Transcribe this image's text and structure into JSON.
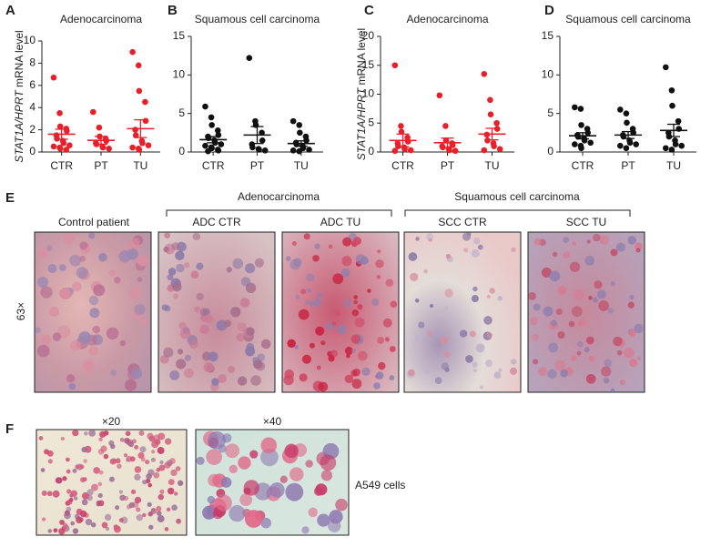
{
  "chart_data": [
    {
      "type": "strip",
      "panel": "A",
      "title": "Adenocarcinoma",
      "ylabel": [
        "STAT1A/HPRT",
        "mRNA level"
      ],
      "color": "#e8202a",
      "categories": [
        "CTR",
        "PT",
        "TU"
      ],
      "ylim": [
        0,
        10
      ],
      "yticks": [
        0,
        2,
        4,
        6,
        8,
        10
      ],
      "groups": [
        {
          "values": [
            6.7,
            3.5,
            2.3,
            2.1,
            1.9,
            1.5,
            1.2,
            1.0,
            0.8,
            0.6,
            0.5,
            0.4,
            0.3,
            0.2
          ],
          "mean": 1.6,
          "error": 0.45
        },
        {
          "values": [
            3.6,
            2.2,
            1.4,
            1.2,
            1.0,
            0.8,
            0.7,
            0.5,
            0.4,
            0.3
          ],
          "mean": 1.05,
          "error": 0.35
        },
        {
          "values": [
            9.0,
            7.8,
            5.5,
            4.5,
            2.8,
            2.0,
            1.5,
            1.0,
            0.8,
            0.6,
            0.4,
            0.3,
            0.2
          ],
          "mean": 2.1,
          "error": 0.8
        }
      ]
    },
    {
      "type": "strip",
      "panel": "B",
      "title": "Squamous cell carcinoma",
      "color": "#111111",
      "categories": [
        "CTR",
        "PT",
        "TU"
      ],
      "ylim": [
        0,
        15
      ],
      "yticks": [
        0,
        5,
        10,
        15
      ],
      "groups": [
        {
          "values": [
            5.9,
            4.5,
            3.5,
            2.8,
            2.2,
            2.0,
            1.8,
            1.5,
            1.2,
            1.0,
            0.8,
            0.6,
            0.5,
            0.3,
            0.2,
            0.1
          ],
          "mean": 1.6,
          "error": 0.4
        },
        {
          "values": [
            12.2,
            4.0,
            3.5,
            2.5,
            1.5,
            1.0,
            0.6,
            0.4,
            0.3,
            0.2
          ],
          "mean": 2.2,
          "error": 1.1
        },
        {
          "values": [
            4.0,
            3.5,
            2.5,
            2.0,
            1.5,
            1.2,
            1.0,
            0.8,
            0.5,
            0.3,
            0.2,
            0.1
          ],
          "mean": 1.1,
          "error": 0.35
        }
      ]
    },
    {
      "type": "strip",
      "panel": "C",
      "title": "Adenocarcinoma",
      "ylabel": [
        "STAT1A/HPRT",
        "mRNA level"
      ],
      "color": "#e8202a",
      "categories": [
        "CTR",
        "PT",
        "TU"
      ],
      "ylim": [
        0,
        20
      ],
      "yticks": [
        0,
        5,
        10,
        15,
        20
      ],
      "groups": [
        {
          "values": [
            15,
            4.5,
            3.5,
            2.5,
            1.8,
            1.5,
            1.0,
            0.8,
            0.5,
            0.3,
            0.2
          ],
          "mean": 2.0,
          "error": 1.1
        },
        {
          "values": [
            9.8,
            4.5,
            2.0,
            1.5,
            1.2,
            1.0,
            0.8,
            0.5,
            0.3,
            0.2
          ],
          "mean": 1.6,
          "error": 0.8
        },
        {
          "values": [
            13.5,
            9.0,
            6.5,
            5.0,
            4.0,
            3.0,
            2.0,
            1.5,
            1.0,
            0.5,
            0.3
          ],
          "mean": 3.1,
          "error": 1.0
        }
      ]
    },
    {
      "type": "strip",
      "panel": "D",
      "title": "Squamous cell carcinoma",
      "color": "#111111",
      "categories": [
        "CTR",
        "PT",
        "TU"
      ],
      "ylim": [
        0,
        15
      ],
      "yticks": [
        0,
        5,
        10,
        15
      ],
      "groups": [
        {
          "values": [
            5.8,
            5.6,
            3.5,
            3.0,
            2.5,
            2.2,
            2.0,
            1.8,
            1.5,
            1.2,
            1.0,
            0.8,
            0.5
          ],
          "mean": 2.1,
          "error": 0.4
        },
        {
          "values": [
            5.5,
            5.0,
            3.8,
            3.0,
            2.5,
            2.2,
            2.0,
            1.5,
            1.2,
            1.0,
            0.8,
            0.5
          ],
          "mean": 2.2,
          "error": 0.45
        },
        {
          "values": [
            11.0,
            8.0,
            6.0,
            4.0,
            3.0,
            2.5,
            2.0,
            1.5,
            1.0,
            0.8,
            0.5,
            0.3
          ],
          "mean": 2.8,
          "error": 0.8
        }
      ]
    }
  ],
  "panel_e": {
    "panel": "E",
    "magnification": "63×",
    "group_labels": [
      "Adenocarcinoma",
      "Squamous cell carcinoma"
    ],
    "image_labels": [
      "Control patient",
      "ADC CTR",
      "ADC TU",
      "SCC CTR",
      "SCC TU"
    ]
  },
  "panel_f": {
    "panel": "F",
    "image_labels": [
      "×20",
      "×40"
    ],
    "side_label": "A549 cells"
  }
}
